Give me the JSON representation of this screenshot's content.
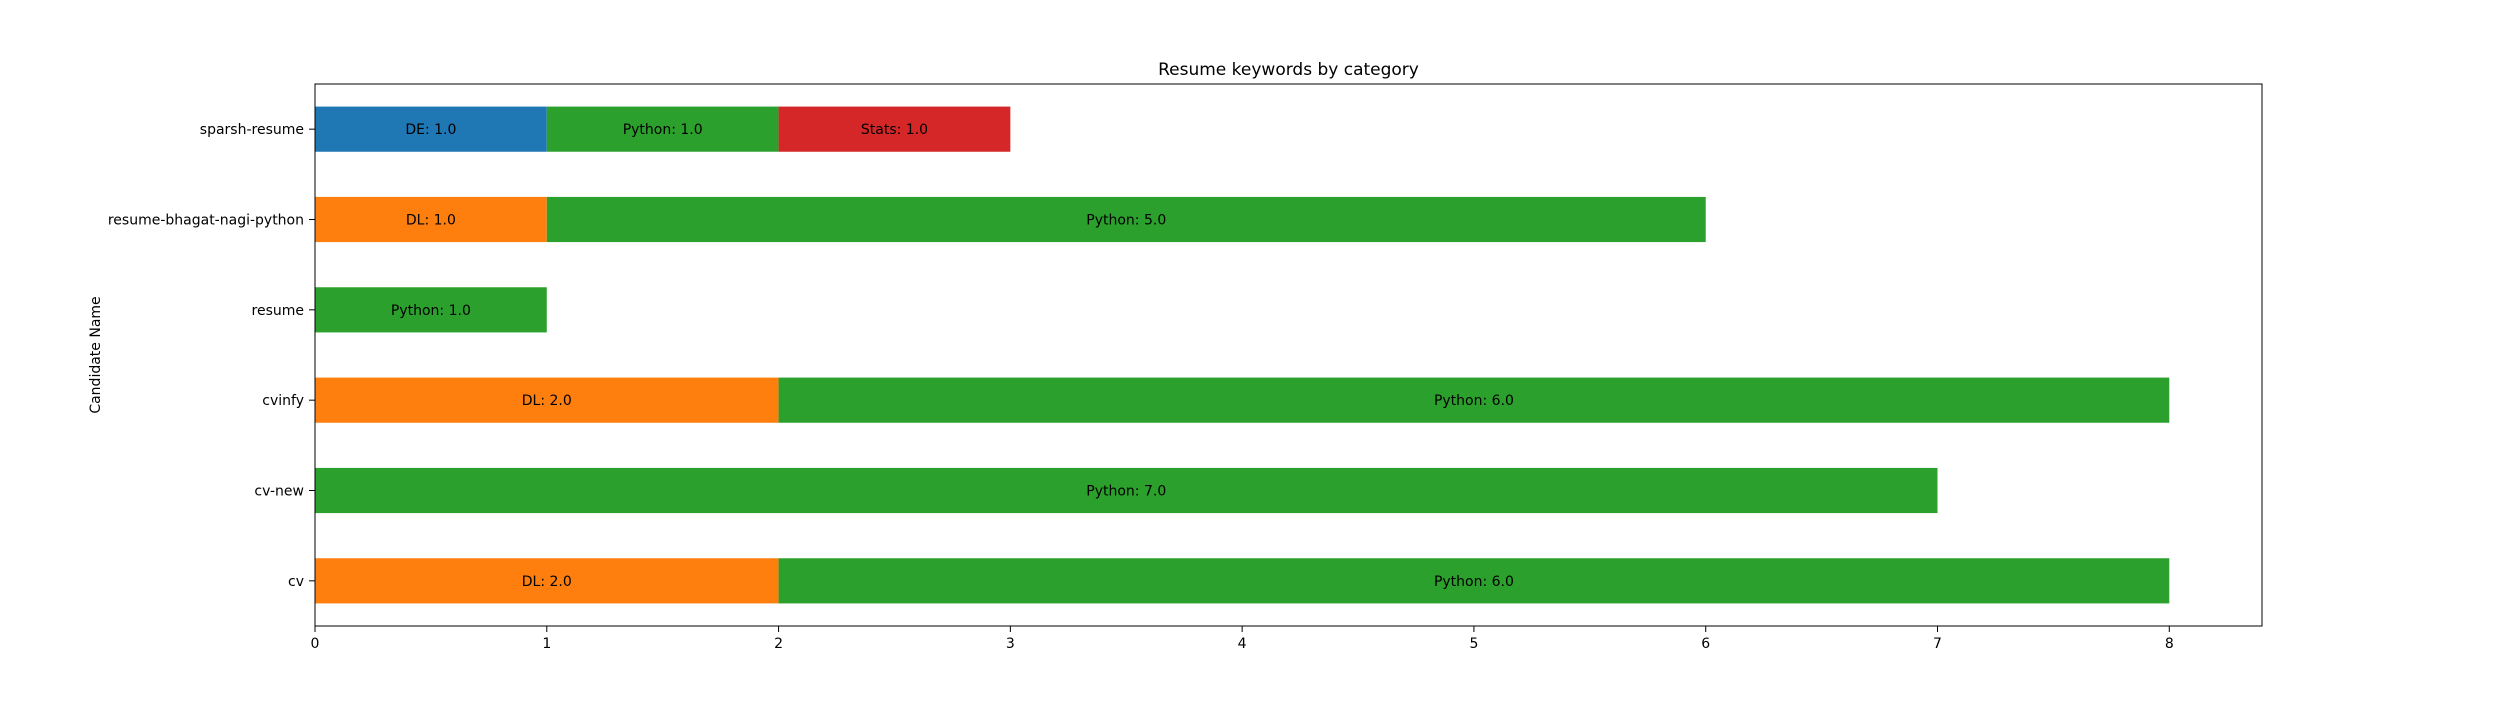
{
  "chart_data": {
    "type": "bar",
    "orientation": "horizontal",
    "stacked": true,
    "title": "Resume keywords by category",
    "xlabel": "",
    "ylabel": "Candidate Name",
    "xlim": [
      0,
      8.4
    ],
    "xticks": [
      0,
      1,
      2,
      3,
      4,
      5,
      6,
      7,
      8
    ],
    "grid": false,
    "legend": "none",
    "categories": [
      "sparsh-resume",
      "resume-bhagat-nagi-python",
      "resume",
      "cvinfy",
      "cv-new",
      "cv"
    ],
    "series": [
      {
        "name": "DE",
        "color": "#1f77b4",
        "values": [
          1.0,
          0,
          0,
          0,
          0,
          0
        ]
      },
      {
        "name": "DL",
        "color": "#ff7f0e",
        "values": [
          0,
          1.0,
          0,
          2.0,
          0,
          2.0
        ]
      },
      {
        "name": "Python",
        "color": "#2ca02c",
        "values": [
          1.0,
          5.0,
          1.0,
          6.0,
          7.0,
          6.0
        ]
      },
      {
        "name": "Stats",
        "color": "#d62728",
        "values": [
          1.0,
          0,
          0,
          0,
          0,
          0
        ]
      }
    ]
  }
}
